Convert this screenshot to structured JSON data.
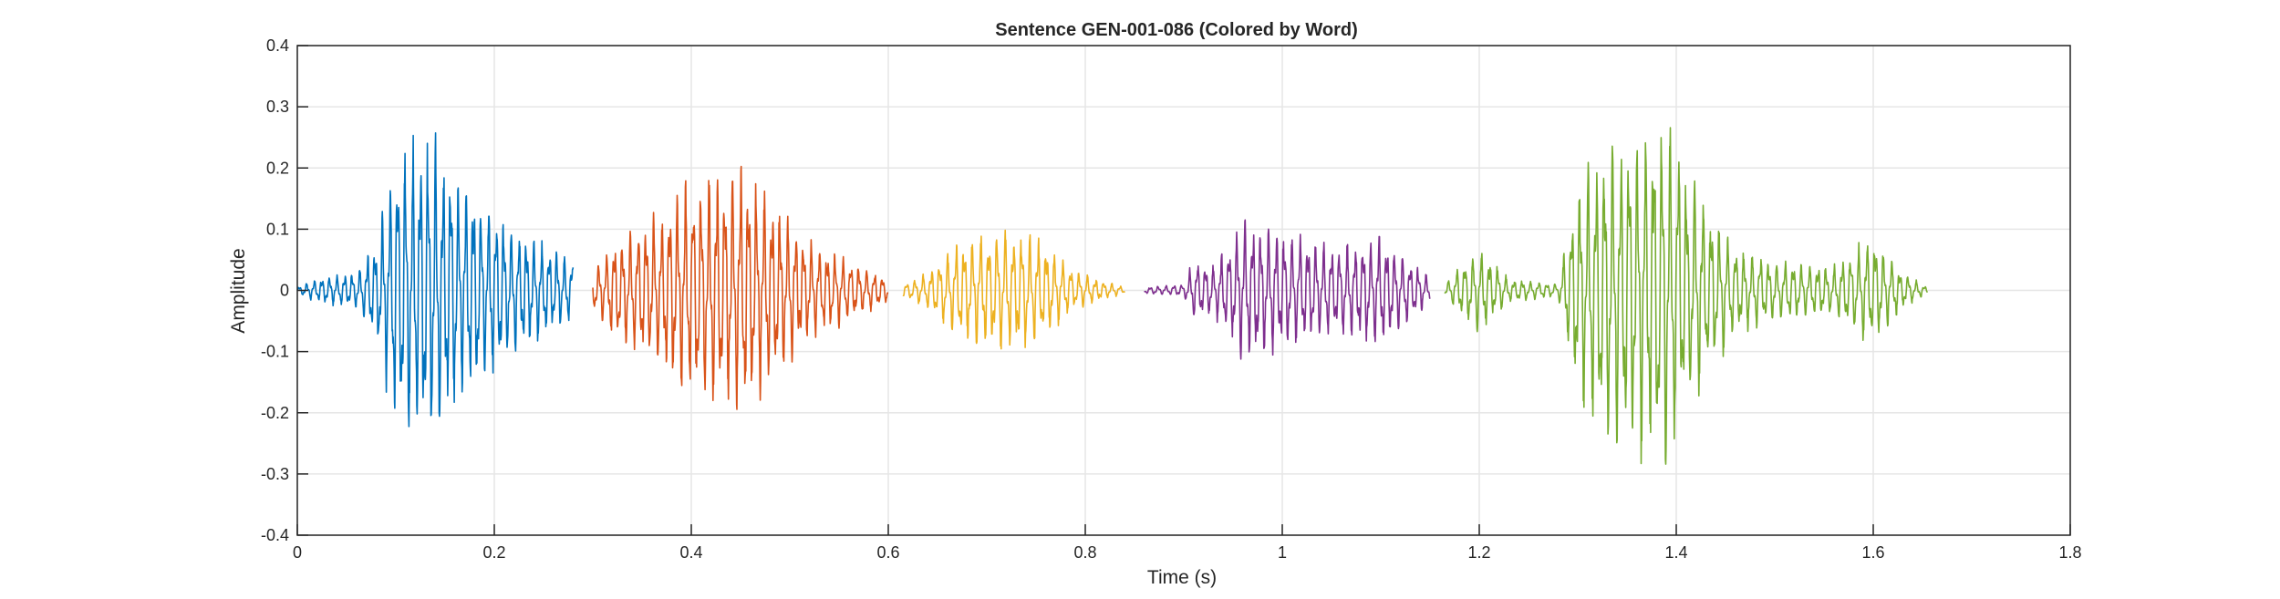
{
  "chart_data": {
    "type": "line",
    "title": "Sentence GEN-001-086 (Colored by Word)",
    "xlabel": "Time (s)",
    "ylabel": "Amplitude",
    "xlim": [
      0,
      1.8
    ],
    "ylim": [
      -0.4,
      0.4
    ],
    "xticks": [
      0,
      0.2,
      0.4,
      0.6,
      0.8,
      1,
      1.2,
      1.4,
      1.6,
      1.8
    ],
    "xtick_labels": [
      "0",
      "0.2",
      "0.4",
      "0.6",
      "0.8",
      "1",
      "1.2",
      "1.4",
      "1.6",
      "1.8"
    ],
    "yticks": [
      -0.4,
      -0.3,
      -0.2,
      -0.1,
      0,
      0.1,
      0.2,
      0.3,
      0.4
    ],
    "ytick_labels": [
      "-0.4",
      "-0.3",
      "-0.2",
      "-0.1",
      "0",
      "0.1",
      "0.2",
      "0.3",
      "0.4"
    ],
    "grid": true,
    "series": [
      {
        "color": "#0072BD",
        "t_start": 0.0,
        "t_end": 0.28,
        "envelope": [
          [
            0.0,
            0.005
          ],
          [
            0.02,
            0.02
          ],
          [
            0.06,
            0.03
          ],
          [
            0.08,
            0.08
          ],
          [
            0.1,
            0.23
          ],
          [
            0.13,
            0.27
          ],
          [
            0.15,
            0.22
          ],
          [
            0.19,
            0.15
          ],
          [
            0.22,
            0.1
          ],
          [
            0.25,
            0.08
          ],
          [
            0.28,
            0.05
          ]
        ],
        "freq": 130
      },
      {
        "color": "#D95319",
        "t_start": 0.3,
        "t_end": 0.6,
        "envelope": [
          [
            0.3,
            0.03
          ],
          [
            0.32,
            0.08
          ],
          [
            0.36,
            0.12
          ],
          [
            0.4,
            0.18
          ],
          [
            0.45,
            0.21
          ],
          [
            0.48,
            0.15
          ],
          [
            0.52,
            0.08
          ],
          [
            0.56,
            0.05
          ],
          [
            0.6,
            0.02
          ]
        ],
        "freq": 125
      },
      {
        "color": "#EDB120",
        "t_start": 0.615,
        "t_end": 0.84,
        "envelope": [
          [
            0.615,
            0.01
          ],
          [
            0.64,
            0.03
          ],
          [
            0.67,
            0.08
          ],
          [
            0.71,
            0.1
          ],
          [
            0.75,
            0.09
          ],
          [
            0.79,
            0.03
          ],
          [
            0.84,
            0.005
          ]
        ],
        "freq": 120
      },
      {
        "color": "#7E2F8E",
        "t_start": 0.86,
        "t_end": 1.15,
        "envelope": [
          [
            0.86,
            0.005
          ],
          [
            0.9,
            0.01
          ],
          [
            0.91,
            0.05
          ],
          [
            0.93,
            0.04
          ],
          [
            0.96,
            0.11
          ],
          [
            1.0,
            0.1
          ],
          [
            1.05,
            0.07
          ],
          [
            1.1,
            0.09
          ],
          [
            1.13,
            0.05
          ],
          [
            1.15,
            0.02
          ]
        ],
        "freq": 125
      },
      {
        "color": "#77AC30",
        "t_start": 1.165,
        "t_end": 1.655,
        "envelope": [
          [
            1.165,
            0.01
          ],
          [
            1.18,
            0.04
          ],
          [
            1.2,
            0.07
          ],
          [
            1.23,
            0.02
          ],
          [
            1.28,
            0.01
          ],
          [
            1.3,
            0.18
          ],
          [
            1.33,
            0.25
          ],
          [
            1.39,
            0.3
          ],
          [
            1.41,
            0.2
          ],
          [
            1.46,
            0.07
          ],
          [
            1.5,
            0.05
          ],
          [
            1.56,
            0.04
          ],
          [
            1.6,
            0.09
          ],
          [
            1.63,
            0.03
          ],
          [
            1.655,
            0.005
          ]
        ],
        "freq": 120
      }
    ]
  }
}
